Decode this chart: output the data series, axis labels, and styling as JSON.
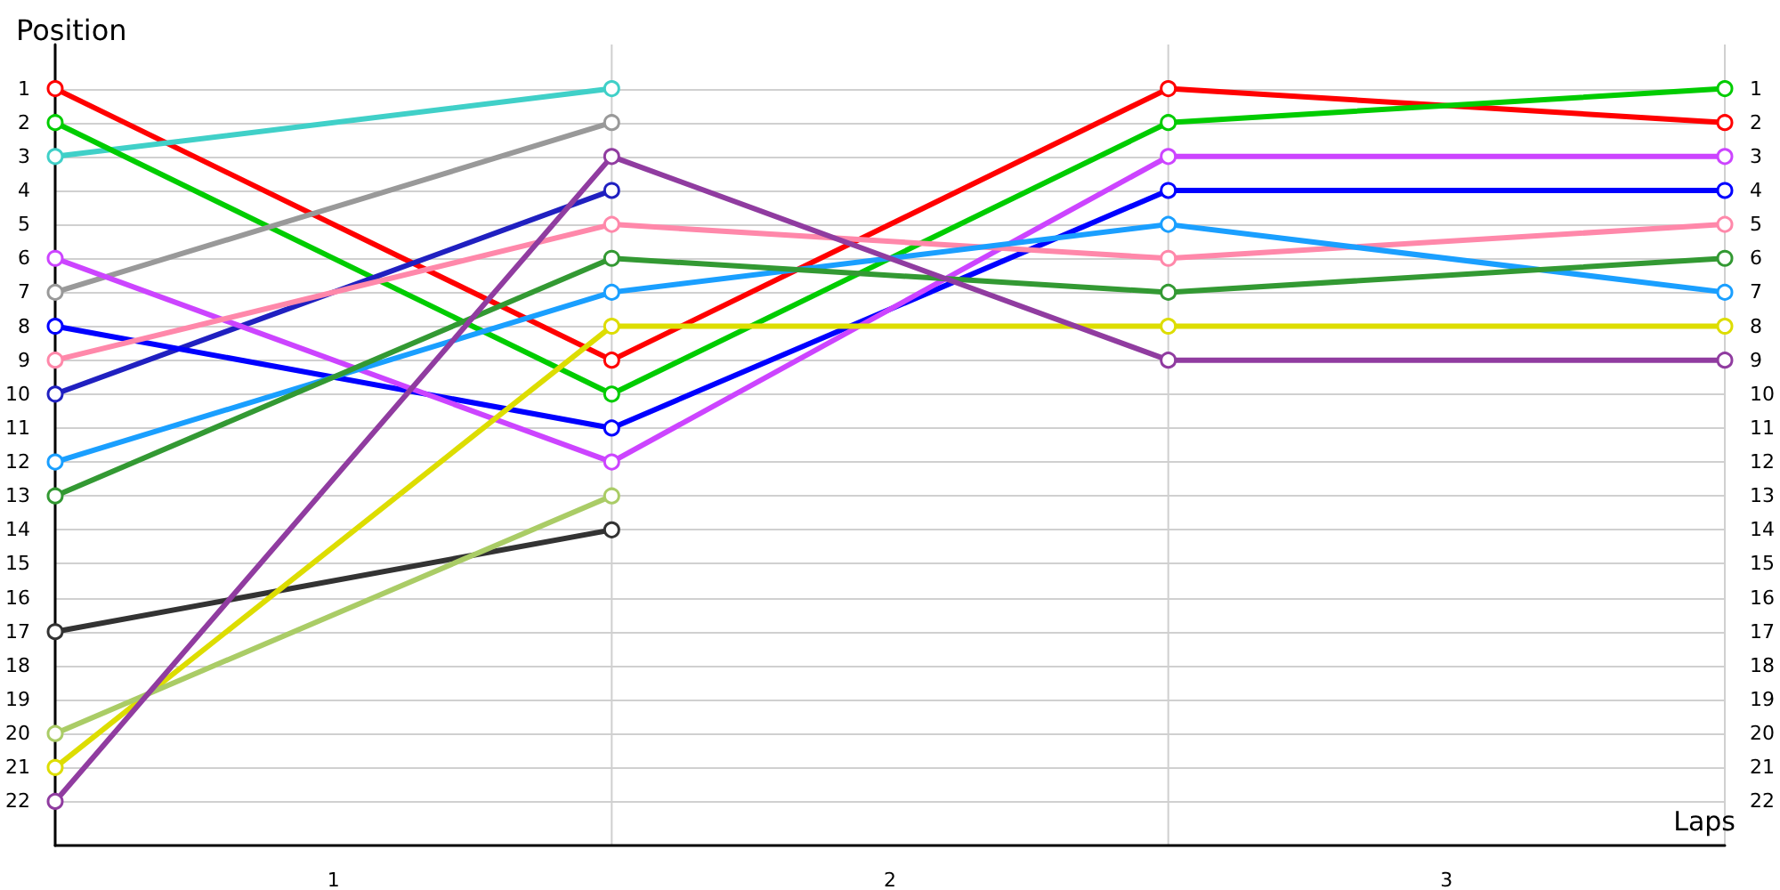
{
  "chart_data": {
    "type": "line",
    "ylabel": "Position",
    "xlabel": "Laps",
    "marker": "circle",
    "line_style": "solid",
    "grid": true,
    "x": [
      0,
      1,
      2,
      3
    ],
    "xlim": [
      0,
      3
    ],
    "xticks": [
      {
        "value": 0,
        "label": null
      },
      {
        "value": 0.5,
        "label": "1"
      },
      {
        "value": 1,
        "label": null
      },
      {
        "value": 1.5,
        "label": "2"
      },
      {
        "value": 2,
        "label": null
      },
      {
        "value": 2.5,
        "label": "3"
      },
      {
        "value": 3,
        "label": null
      }
    ],
    "ylim": [
      23.3,
      -0.3
    ],
    "yticks": [
      1,
      2,
      3,
      4,
      5,
      6,
      7,
      8,
      9,
      10,
      11,
      12,
      13,
      14,
      15,
      16,
      17,
      18,
      19,
      20,
      21,
      22
    ],
    "y2lim": [
      23.3,
      -0.3
    ],
    "y2ticks": [
      1,
      2,
      3,
      4,
      5,
      6,
      7,
      8,
      9,
      10,
      11,
      12,
      13,
      14,
      15,
      16,
      17,
      18,
      19,
      20,
      21,
      22
    ],
    "series": [
      {
        "color": "#ff0000",
        "values": [
          1,
          9,
          1,
          2
        ]
      },
      {
        "color": "#40d0c8",
        "values": [
          3,
          1,
          null,
          null
        ]
      },
      {
        "color": "#00cc00",
        "values": [
          2,
          10,
          2,
          1
        ]
      },
      {
        "color": "#999999",
        "values": [
          7,
          2,
          null,
          null
        ]
      },
      {
        "color": "#2020c0",
        "values": [
          10,
          4,
          null,
          null
        ]
      },
      {
        "color": "#0000ff",
        "values": [
          8,
          11,
          4,
          4
        ]
      },
      {
        "color": "#cc44ff",
        "values": [
          6,
          12,
          3,
          3
        ]
      },
      {
        "color": "#ff88aa",
        "values": [
          9,
          5,
          6,
          5
        ]
      },
      {
        "color": "#1a9fff",
        "values": [
          12,
          7,
          5,
          7
        ]
      },
      {
        "color": "#339933",
        "values": [
          13,
          6,
          7,
          6
        ]
      },
      {
        "color": "#333333",
        "values": [
          17,
          14,
          null,
          null
        ]
      },
      {
        "color": "#dddd00",
        "values": [
          21,
          8,
          8,
          8
        ]
      },
      {
        "color": "#aacc66",
        "values": [
          20,
          13,
          null,
          null
        ]
      },
      {
        "color": "#903ca0",
        "values": [
          22,
          3,
          9,
          9
        ]
      }
    ]
  }
}
